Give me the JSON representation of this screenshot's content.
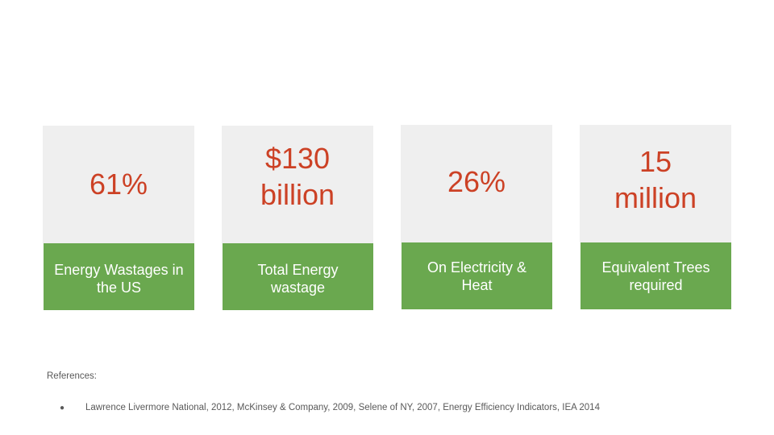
{
  "stats": [
    {
      "value": "61%",
      "label": "Energy Wastages in\nthe US"
    },
    {
      "value": "$130\nbillion",
      "label": "Total Energy\nwastage"
    },
    {
      "value": "26%",
      "label": "On Electricity &\nHeat"
    },
    {
      "value": "15\nmillion",
      "label": "Equivalent Trees\nrequired"
    }
  ],
  "references": {
    "heading": "References:",
    "items": [
      "Lawrence Livermore National, 2012, McKinsey & Company, 2009, Selene of NY, 2007, Energy Efficiency Indicators, IEA 2014"
    ]
  },
  "colors": {
    "stat_text": "#cc4125",
    "card_top": "#efefef",
    "card_bottom": "#6aa84f",
    "label_text": "#ffffff"
  }
}
